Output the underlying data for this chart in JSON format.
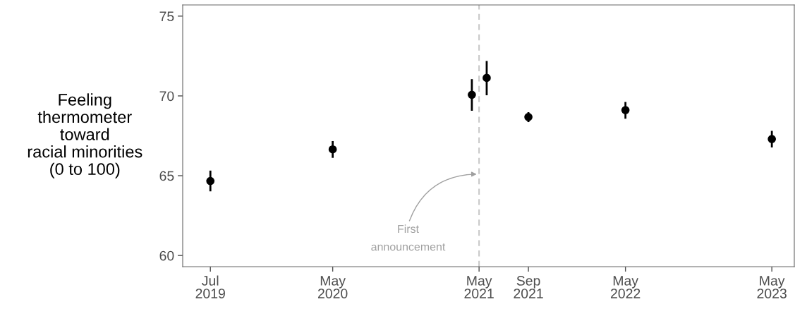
{
  "chart_data": {
    "type": "scatter",
    "ylabel": "Feeling\nthermometer\ntoward\nracial minorities\n(0 to 100)",
    "x": [
      "2019-07-01",
      "2020-05-01",
      "2021-04-13",
      "2021-05-20",
      "2021-09-01",
      "2022-05-01",
      "2023-05-01"
    ],
    "values": [
      64.67,
      66.65,
      70.07,
      71.13,
      68.68,
      69.11,
      67.3
    ],
    "errors": [
      [
        64.02,
        65.32
      ],
      [
        66.12,
        67.17
      ],
      [
        69.07,
        71.05
      ],
      [
        70.04,
        72.19
      ],
      [
        68.36,
        68.98
      ],
      [
        68.57,
        69.62
      ],
      [
        66.77,
        67.81
      ]
    ],
    "color": "#000000",
    "marker": "circle",
    "xlim": [
      "2019-04-23",
      "2023-06-26"
    ],
    "ylim": [
      59.3,
      75.7
    ],
    "yticks": [
      60,
      65,
      70,
      75
    ],
    "xticks": [
      {
        "value": "2019-07-01",
        "label": "Jul\n2019"
      },
      {
        "value": "2020-05-01",
        "label": "May\n2020"
      },
      {
        "value": "2021-05-01",
        "label": "May\n2021"
      },
      {
        "value": "2021-09-01",
        "label": "Sep\n2021"
      },
      {
        "value": "2022-05-01",
        "label": "May\n2022"
      },
      {
        "value": "2023-05-01",
        "label": "May\n2023"
      }
    ],
    "ref_lines": [
      {
        "axis": "x",
        "value": "2021-05-01",
        "color": "#c8c8c8",
        "line_style": "dashed"
      }
    ],
    "annotations": [
      {
        "text": "First\nannouncement",
        "x": "2021-04-25",
        "y": 65.1
      }
    ],
    "grid": false,
    "legend": false
  }
}
